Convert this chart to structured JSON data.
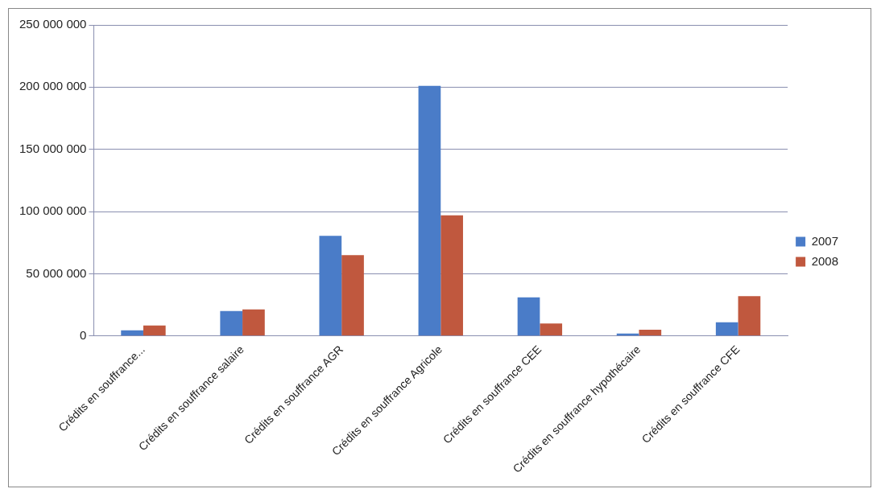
{
  "chart_data": {
    "type": "bar",
    "categories": [
      "Crédits en souffrance...",
      "Crédits en souffrance salaire",
      "Crédits en souffrance AGR",
      "Crédits en souffrance Agricole",
      "Crédits en souffrance CEE",
      "Crédits en souffrance hypothécaire",
      "Crédits en souffrance CFE"
    ],
    "series": [
      {
        "name": "2007",
        "color": "#4a7cc8",
        "values": [
          4500000,
          20000000,
          80500000,
          201000000,
          31000000,
          2000000,
          11000000
        ]
      },
      {
        "name": "2008",
        "color": "#c0583e",
        "values": [
          8400000,
          21400000,
          65000000,
          97000000,
          10000000,
          5000000,
          32000000
        ]
      }
    ],
    "ylim": [
      0,
      250000000
    ],
    "yticks": [
      {
        "value": 0,
        "label": "0"
      },
      {
        "value": 50000000,
        "label": "50 000 000"
      },
      {
        "value": 100000000,
        "label": "100 000 000"
      },
      {
        "value": 150000000,
        "label": "150 000 000"
      },
      {
        "value": 200000000,
        "label": "200 000 000"
      },
      {
        "value": 250000000,
        "label": "250 000 000"
      }
    ],
    "grid": "y",
    "legend": "right"
  }
}
